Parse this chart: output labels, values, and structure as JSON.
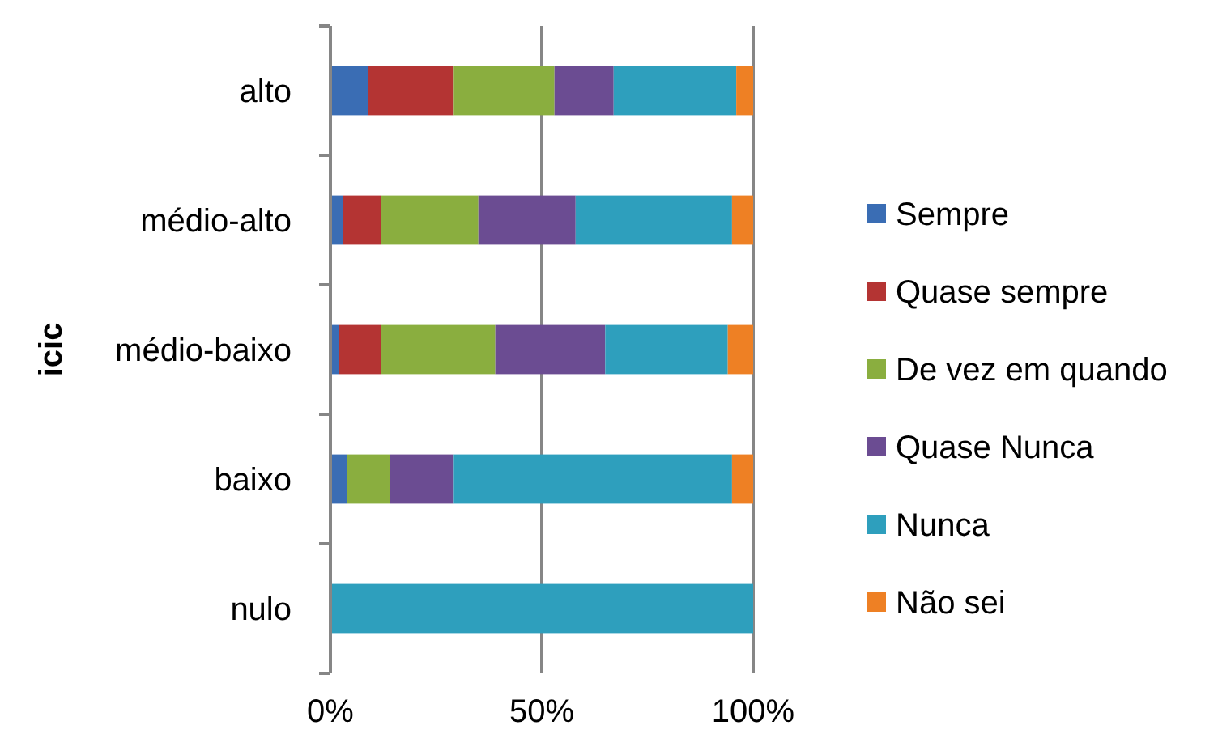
{
  "chart_data": {
    "type": "bar",
    "orientation": "horizontal",
    "stacked": true,
    "ylabel": "icic",
    "categories": [
      "alto",
      "médio-alto",
      "médio-baixo",
      "baixo",
      "nulo"
    ],
    "series": [
      {
        "name": "Sempre",
        "color": "#3a6db4",
        "values": [
          9,
          3,
          2,
          4,
          0
        ]
      },
      {
        "name": "Quase sempre",
        "color": "#b43433",
        "values": [
          20,
          9,
          10,
          0,
          0
        ]
      },
      {
        "name": "De vez em quando",
        "color": "#8aae3f",
        "values": [
          24,
          23,
          27,
          10,
          0
        ]
      },
      {
        "name": "Quase Nunca",
        "color": "#6b4c92",
        "values": [
          14,
          23,
          26,
          15,
          0
        ]
      },
      {
        "name": "Nunca",
        "color": "#2e9fbd",
        "values": [
          29,
          37,
          29,
          66,
          100
        ]
      },
      {
        "name": "Não sei",
        "color": "#ee8024",
        "values": [
          4,
          5,
          6,
          5,
          0
        ]
      }
    ],
    "xlim": [
      0,
      100
    ],
    "xticks": [
      {
        "value": 0,
        "label": "0%"
      },
      {
        "value": 50,
        "label": "50%"
      },
      {
        "value": 100,
        "label": "100%"
      }
    ],
    "grid": "x",
    "legend": "right"
  }
}
